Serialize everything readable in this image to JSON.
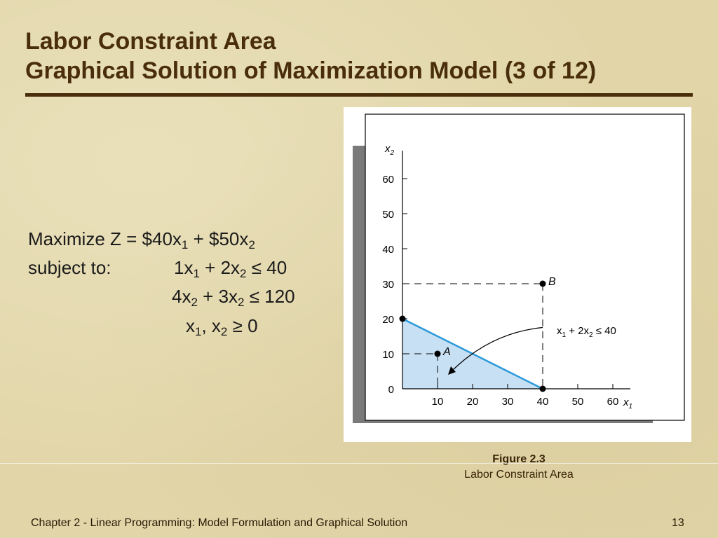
{
  "slide": {
    "title_line1": "Labor Constraint Area",
    "title_line2": "Graphical Solution of Maximization Model (3 of 12)",
    "colors": {
      "title": "#4a2e0c",
      "background": "#e2d6a9",
      "region": "#c8e0f4",
      "constraint": "#2a9ad8"
    }
  },
  "model": {
    "objective": {
      "prefix": "Maximize Z = $40x",
      "s1": "1",
      "mid": " + $50x",
      "s2": "2"
    },
    "subject_to": "subject to:",
    "c1": {
      "a": "1x",
      "s1": "1",
      "b": " + 2x",
      "s2": "2",
      "rel": "≤",
      "rhs": " 40"
    },
    "c2": {
      "a": "4x",
      "s1": "2",
      "b": " + 3x",
      "s2": "2",
      "rel": "≤",
      "rhs": " 120"
    },
    "nonneg": {
      "a": "x",
      "s1": "1",
      "b": ", x",
      "s2": "2",
      "rel": "≥",
      "rhs": " 0"
    }
  },
  "figure": {
    "number": "Figure 2.3",
    "caption": "Labor Constraint Area"
  },
  "footer": {
    "text": "Chapter 2 - Linear Programming:  Model Formulation and Graphical Solution",
    "page": "13"
  },
  "chart_data": {
    "type": "line",
    "x_axis": {
      "label": "x",
      "label_sub": "1",
      "range": [
        0,
        65
      ],
      "ticks": [
        10,
        20,
        30,
        40,
        50,
        60
      ],
      "tick_labels": [
        "10",
        "20",
        "30",
        "40",
        "50",
        "60"
      ]
    },
    "y_axis": {
      "label": "x",
      "label_sub": "2",
      "range": [
        0,
        68
      ],
      "ticks": [
        0,
        10,
        20,
        30,
        40,
        50,
        60
      ],
      "tick_labels": [
        "0",
        "10",
        "20",
        "30",
        "40",
        "50",
        "60"
      ]
    },
    "grid": false,
    "constraint_line": {
      "x": [
        0,
        40
      ],
      "y": [
        20,
        0
      ]
    },
    "feasible_region": [
      [
        0,
        0
      ],
      [
        0,
        20
      ],
      [
        40,
        0
      ]
    ],
    "points": [
      {
        "label": "A",
        "x": 10,
        "y": 10
      },
      {
        "label": "B",
        "x": 40,
        "y": 30
      }
    ],
    "endpoints": [
      {
        "x": 0,
        "y": 20
      },
      {
        "x": 40,
        "y": 0
      }
    ],
    "annotation": {
      "a": "x",
      "s1": "1",
      "b": " + 2x",
      "s2": "2",
      "rel": " ≤ ",
      "rhs": "40",
      "points_to": [
        13,
        4
      ]
    }
  }
}
